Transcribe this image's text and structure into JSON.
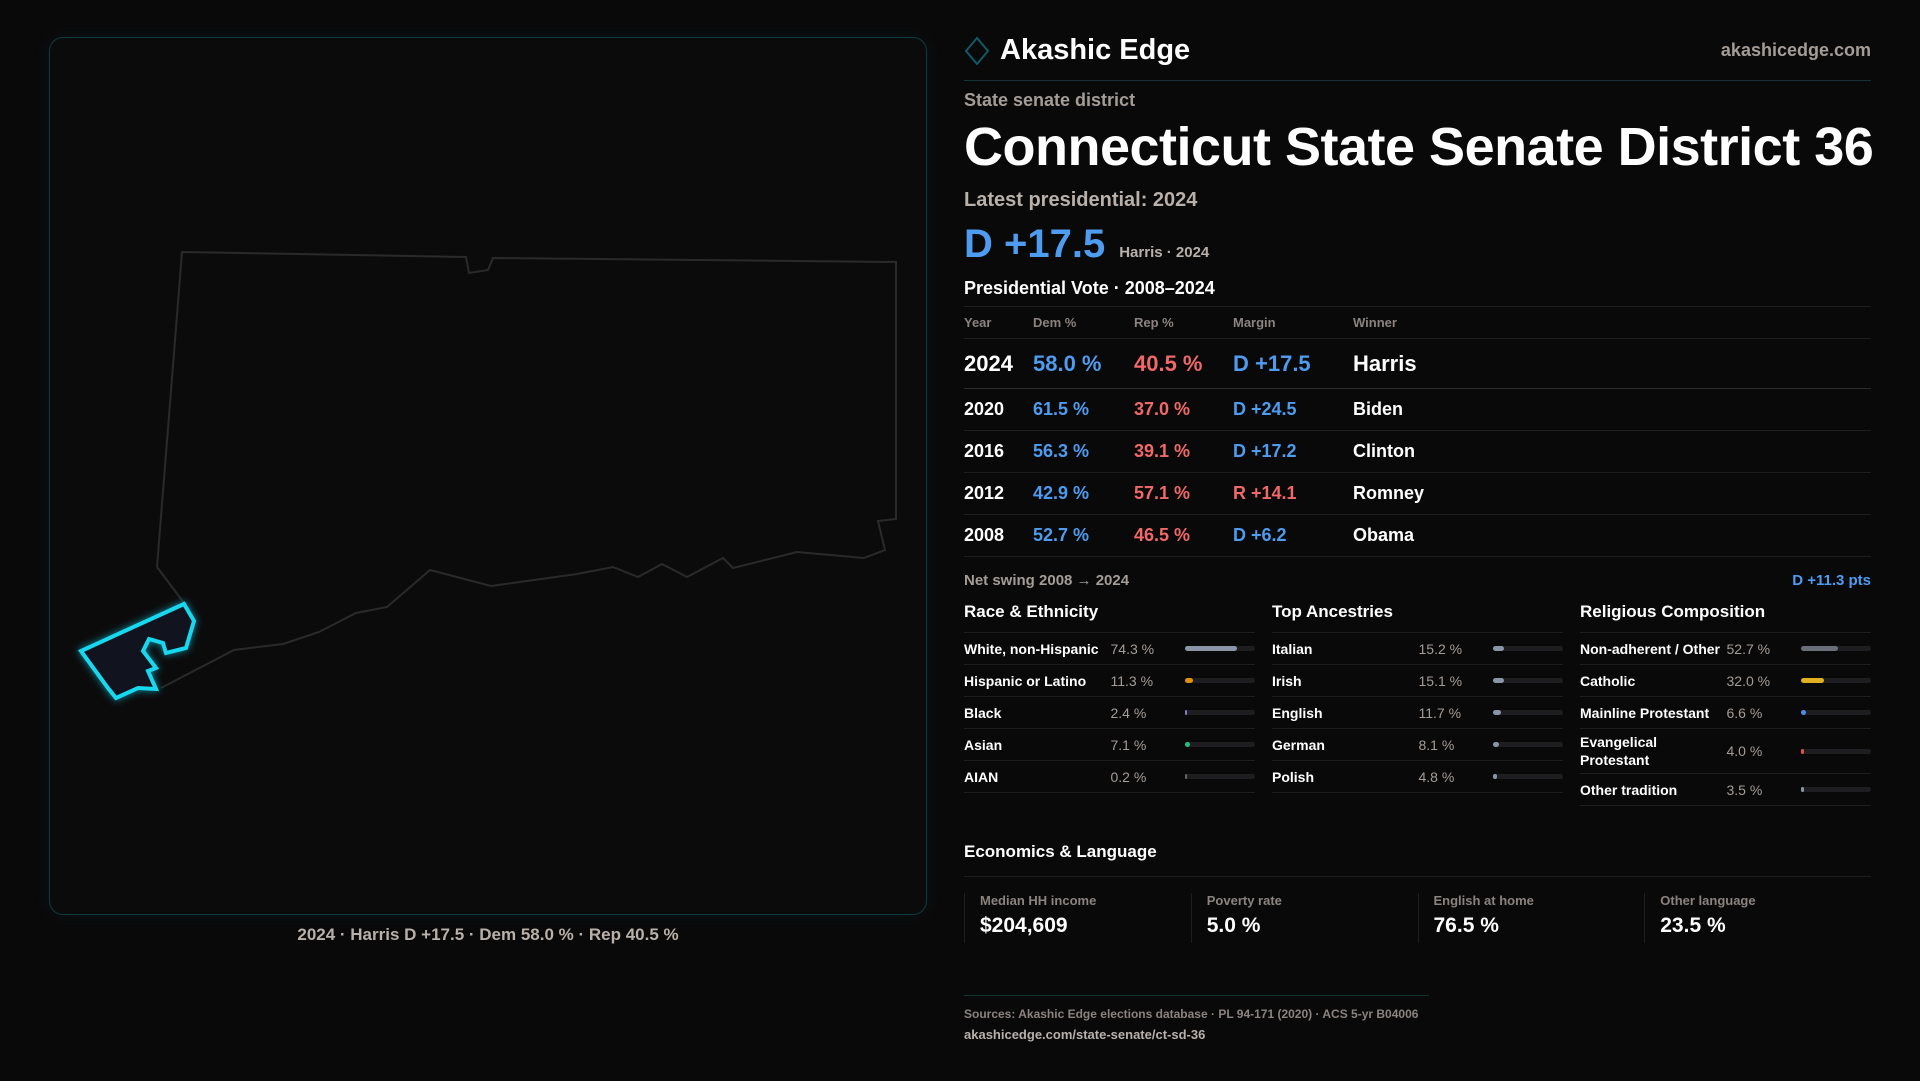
{
  "brand": {
    "name": "Akashic Edge",
    "site": "akashicedge.com"
  },
  "kicker": "State senate district",
  "title": "Connecticut State Senate District 36",
  "latest_label": "Latest presidential: 2024",
  "latest_margin": "D +17.5",
  "latest_sub": "Harris · 2024",
  "pres_title": "Presidential Vote · 2008–2024",
  "table": {
    "headers": [
      "Year",
      "Dem %",
      "Rep %",
      "Margin",
      "Winner"
    ],
    "rows": [
      {
        "year": "2024",
        "dem": "58.0 %",
        "rep": "40.5 %",
        "margin": "D +17.5",
        "winner": "Harris",
        "party": "D"
      },
      {
        "year": "2020",
        "dem": "61.5 %",
        "rep": "37.0 %",
        "margin": "D +24.5",
        "winner": "Biden",
        "party": "D"
      },
      {
        "year": "2016",
        "dem": "56.3 %",
        "rep": "39.1 %",
        "margin": "D +17.2",
        "winner": "Clinton",
        "party": "D"
      },
      {
        "year": "2012",
        "dem": "42.9 %",
        "rep": "57.1 %",
        "margin": "R +14.1",
        "winner": "Romney",
        "party": "R"
      },
      {
        "year": "2008",
        "dem": "52.7 %",
        "rep": "46.5 %",
        "margin": "D +6.2",
        "winner": "Obama",
        "party": "D"
      }
    ]
  },
  "swing": {
    "label": "Net swing 2008 → 2024",
    "value": "D +11.3 pts"
  },
  "sections": [
    {
      "title": "Race & Ethnicity",
      "items": [
        {
          "label": "White, non-Hispanic",
          "value": "74.3 %",
          "pct": 74.3,
          "color": "#8a96a8"
        },
        {
          "label": "Hispanic or Latino",
          "value": "11.3 %",
          "pct": 11.3,
          "color": "#e0900a"
        },
        {
          "label": "Black",
          "value": "2.4 %",
          "pct": 2.4,
          "color": "#8878c8"
        },
        {
          "label": "Asian",
          "value": "7.1 %",
          "pct": 7.1,
          "color": "#20c080"
        },
        {
          "label": "AIAN",
          "value": "0.2 %",
          "pct": 0.2,
          "color": "#666"
        }
      ]
    },
    {
      "title": "Top Ancestries",
      "items": [
        {
          "label": "Italian",
          "value": "15.2 %",
          "pct": 15.2,
          "color": "#8a96a8"
        },
        {
          "label": "Irish",
          "value": "15.1 %",
          "pct": 15.1,
          "color": "#8a96a8"
        },
        {
          "label": "English",
          "value": "11.7 %",
          "pct": 11.7,
          "color": "#8a96a8"
        },
        {
          "label": "German",
          "value": "8.1 %",
          "pct": 8.1,
          "color": "#8a96a8"
        },
        {
          "label": "Polish",
          "value": "4.8 %",
          "pct": 4.8,
          "color": "#8a96a8"
        }
      ]
    },
    {
      "title": "Religious Composition",
      "items": [
        {
          "label": "Non-adherent / Other",
          "value": "52.7 %",
          "pct": 52.7,
          "color": "#6a6e78"
        },
        {
          "label": "Catholic",
          "value": "32.0 %",
          "pct": 32.0,
          "color": "#e0b020"
        },
        {
          "label": "Mainline Protestant",
          "value": "6.6 %",
          "pct": 6.6,
          "color": "#4e8ef0"
        },
        {
          "label": "Evangelical Protestant",
          "value": "4.0 %",
          "pct": 4.0,
          "color": "#e05050"
        },
        {
          "label": "Other tradition",
          "value": "3.5 %",
          "pct": 3.5,
          "color": "#8a96a8"
        }
      ]
    }
  ],
  "econ": {
    "title": "Economics & Language",
    "cards": [
      {
        "label": "Median HH income",
        "value": "$204,609"
      },
      {
        "label": "Poverty rate",
        "value": "5.0 %"
      },
      {
        "label": "English at home",
        "value": "76.5 %"
      },
      {
        "label": "Other language",
        "value": "23.5 %"
      }
    ]
  },
  "map_caption": "2024 · Harris D +17.5 · Dem 58.0 % · Rep 40.5 %",
  "footer": {
    "sources": "Sources: Akashic Edge elections database · PL 94-171 (2020) · ACS 5-yr B04006",
    "url": "akashicedge.com/state-senate/ct-sd-36"
  },
  "colors": {
    "dem": "#4e9cf0",
    "rep": "#f06868",
    "accent": "#18d8f0"
  }
}
